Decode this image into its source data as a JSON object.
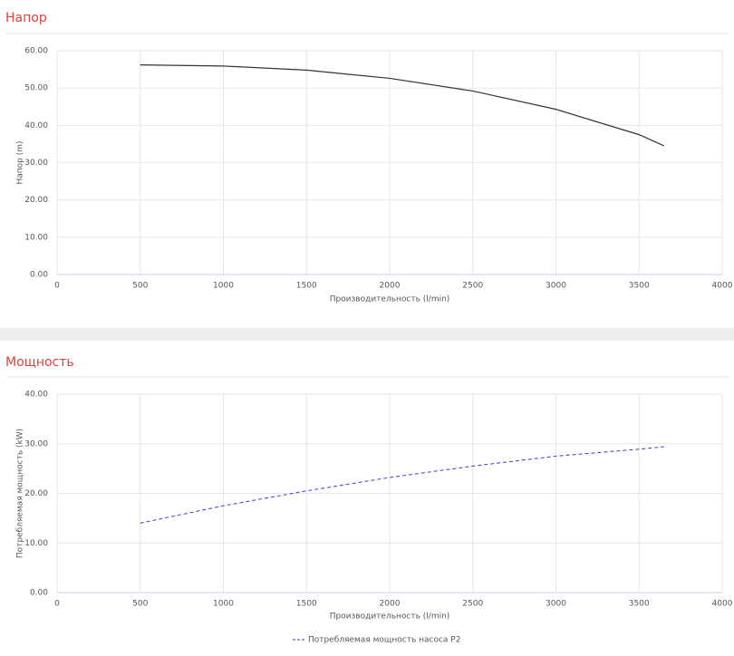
{
  "chart_data": [
    {
      "type": "line",
      "title": "Напор",
      "x_label": "Производительность (l/min)",
      "y_label": "Напор (m)",
      "x": [
        500,
        1000,
        1500,
        2000,
        2500,
        3000,
        3500,
        3650
      ],
      "series": [
        {
          "color": "#333333",
          "line_style": "solid",
          "values": [
            56.2,
            55.9,
            54.8,
            52.6,
            49.2,
            44.3,
            37.5,
            34.5
          ]
        }
      ],
      "xlim": [
        0,
        4000
      ],
      "xticks": [
        0,
        500,
        1000,
        1500,
        2000,
        2500,
        3000,
        3500,
        4000
      ],
      "ylim": [
        0,
        60
      ],
      "yticks": [
        {
          "value": 0,
          "label": "0.00"
        },
        {
          "value": 10,
          "label": "10.00"
        },
        {
          "value": 20,
          "label": "20.00"
        },
        {
          "value": 30,
          "label": "30.00"
        },
        {
          "value": 40,
          "label": "40.00"
        },
        {
          "value": 50,
          "label": "50.00"
        },
        {
          "value": 60,
          "label": "60.00"
        }
      ],
      "grid": true
    },
    {
      "type": "line",
      "title": "Мощность",
      "x_label": "Производительность (l/min)",
      "y_label": "Потребляемая мощность (kW)",
      "x": [
        500,
        1000,
        1500,
        2000,
        2500,
        3000,
        3500,
        3650
      ],
      "series": [
        {
          "name": "Потребляемая мощность насоса P2",
          "color": "#3b3bd6",
          "line_style": "dashed",
          "values": [
            14.0,
            17.5,
            20.5,
            23.2,
            25.5,
            27.5,
            28.9,
            29.4
          ]
        }
      ],
      "xlim": [
        0,
        4000
      ],
      "xticks": [
        0,
        500,
        1000,
        1500,
        2000,
        2500,
        3000,
        3500,
        4000
      ],
      "ylim": [
        0,
        40
      ],
      "yticks": [
        {
          "value": 0,
          "label": "0.00"
        },
        {
          "value": 10,
          "label": "10.00"
        },
        {
          "value": 20,
          "label": "20.00"
        },
        {
          "value": 30,
          "label": "30.00"
        },
        {
          "value": 40,
          "label": "40.00"
        }
      ],
      "grid": true
    }
  ]
}
